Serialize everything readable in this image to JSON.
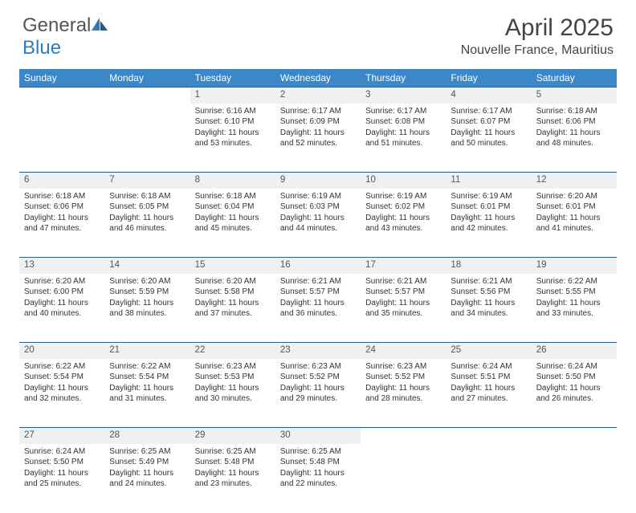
{
  "brand": {
    "part1": "General",
    "part2": "Blue"
  },
  "title": "April 2025",
  "location": "Nouvelle France, Mauritius",
  "colors": {
    "header_bg": "#3b87c8",
    "header_text": "#ffffff",
    "daynum_bg": "#eef0f1",
    "row_border": "#2a5e8a",
    "text": "#333333",
    "logo_blue": "#2f7bbf"
  },
  "daysOfWeek": [
    "Sunday",
    "Monday",
    "Tuesday",
    "Wednesday",
    "Thursday",
    "Friday",
    "Saturday"
  ],
  "weeks": [
    [
      null,
      null,
      {
        "n": "1",
        "sr": "6:16 AM",
        "ss": "6:10 PM",
        "dl": "11 hours and 53 minutes."
      },
      {
        "n": "2",
        "sr": "6:17 AM",
        "ss": "6:09 PM",
        "dl": "11 hours and 52 minutes."
      },
      {
        "n": "3",
        "sr": "6:17 AM",
        "ss": "6:08 PM",
        "dl": "11 hours and 51 minutes."
      },
      {
        "n": "4",
        "sr": "6:17 AM",
        "ss": "6:07 PM",
        "dl": "11 hours and 50 minutes."
      },
      {
        "n": "5",
        "sr": "6:18 AM",
        "ss": "6:06 PM",
        "dl": "11 hours and 48 minutes."
      }
    ],
    [
      {
        "n": "6",
        "sr": "6:18 AM",
        "ss": "6:06 PM",
        "dl": "11 hours and 47 minutes."
      },
      {
        "n": "7",
        "sr": "6:18 AM",
        "ss": "6:05 PM",
        "dl": "11 hours and 46 minutes."
      },
      {
        "n": "8",
        "sr": "6:18 AM",
        "ss": "6:04 PM",
        "dl": "11 hours and 45 minutes."
      },
      {
        "n": "9",
        "sr": "6:19 AM",
        "ss": "6:03 PM",
        "dl": "11 hours and 44 minutes."
      },
      {
        "n": "10",
        "sr": "6:19 AM",
        "ss": "6:02 PM",
        "dl": "11 hours and 43 minutes."
      },
      {
        "n": "11",
        "sr": "6:19 AM",
        "ss": "6:01 PM",
        "dl": "11 hours and 42 minutes."
      },
      {
        "n": "12",
        "sr": "6:20 AM",
        "ss": "6:01 PM",
        "dl": "11 hours and 41 minutes."
      }
    ],
    [
      {
        "n": "13",
        "sr": "6:20 AM",
        "ss": "6:00 PM",
        "dl": "11 hours and 40 minutes."
      },
      {
        "n": "14",
        "sr": "6:20 AM",
        "ss": "5:59 PM",
        "dl": "11 hours and 38 minutes."
      },
      {
        "n": "15",
        "sr": "6:20 AM",
        "ss": "5:58 PM",
        "dl": "11 hours and 37 minutes."
      },
      {
        "n": "16",
        "sr": "6:21 AM",
        "ss": "5:57 PM",
        "dl": "11 hours and 36 minutes."
      },
      {
        "n": "17",
        "sr": "6:21 AM",
        "ss": "5:57 PM",
        "dl": "11 hours and 35 minutes."
      },
      {
        "n": "18",
        "sr": "6:21 AM",
        "ss": "5:56 PM",
        "dl": "11 hours and 34 minutes."
      },
      {
        "n": "19",
        "sr": "6:22 AM",
        "ss": "5:55 PM",
        "dl": "11 hours and 33 minutes."
      }
    ],
    [
      {
        "n": "20",
        "sr": "6:22 AM",
        "ss": "5:54 PM",
        "dl": "11 hours and 32 minutes."
      },
      {
        "n": "21",
        "sr": "6:22 AM",
        "ss": "5:54 PM",
        "dl": "11 hours and 31 minutes."
      },
      {
        "n": "22",
        "sr": "6:23 AM",
        "ss": "5:53 PM",
        "dl": "11 hours and 30 minutes."
      },
      {
        "n": "23",
        "sr": "6:23 AM",
        "ss": "5:52 PM",
        "dl": "11 hours and 29 minutes."
      },
      {
        "n": "24",
        "sr": "6:23 AM",
        "ss": "5:52 PM",
        "dl": "11 hours and 28 minutes."
      },
      {
        "n": "25",
        "sr": "6:24 AM",
        "ss": "5:51 PM",
        "dl": "11 hours and 27 minutes."
      },
      {
        "n": "26",
        "sr": "6:24 AM",
        "ss": "5:50 PM",
        "dl": "11 hours and 26 minutes."
      }
    ],
    [
      {
        "n": "27",
        "sr": "6:24 AM",
        "ss": "5:50 PM",
        "dl": "11 hours and 25 minutes."
      },
      {
        "n": "28",
        "sr": "6:25 AM",
        "ss": "5:49 PM",
        "dl": "11 hours and 24 minutes."
      },
      {
        "n": "29",
        "sr": "6:25 AM",
        "ss": "5:48 PM",
        "dl": "11 hours and 23 minutes."
      },
      {
        "n": "30",
        "sr": "6:25 AM",
        "ss": "5:48 PM",
        "dl": "11 hours and 22 minutes."
      },
      null,
      null,
      null
    ]
  ],
  "labels": {
    "sunrise": "Sunrise:",
    "sunset": "Sunset:",
    "daylight": "Daylight:"
  }
}
